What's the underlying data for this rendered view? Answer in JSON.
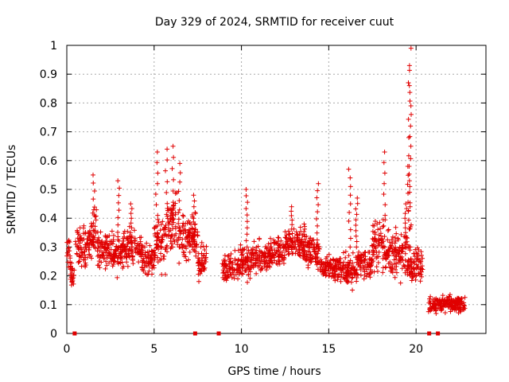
{
  "chart_data": {
    "type": "scatter",
    "title": "Day 329 of 2024, SRMTID for receiver cuut",
    "xlabel": "GPS time / hours",
    "ylabel": "SRMTID / TECUs",
    "xlim": [
      0,
      24
    ],
    "ylim": [
      0,
      1
    ],
    "x_ticks": [
      0,
      5,
      10,
      15,
      20
    ],
    "x_tick_labels": [
      "0",
      "5",
      "10",
      "15",
      "20"
    ],
    "y_ticks": [
      0,
      0.1,
      0.2,
      0.3,
      0.4,
      0.5,
      0.6,
      0.7,
      0.8,
      0.9,
      1
    ],
    "y_tick_labels": [
      "0",
      "0.1",
      "0.2",
      "0.3",
      "0.4",
      "0.5",
      "0.6",
      "0.7",
      "0.8",
      "0.9",
      "1"
    ],
    "grid": true,
    "marker": "+",
    "color": "#e00000",
    "segments": [
      {
        "start": 0.0,
        "end": 0.2,
        "base": 0.28,
        "spread": 0.1
      },
      {
        "start": 0.2,
        "end": 0.45,
        "base": 0.2,
        "spread": 0.07
      },
      {
        "start": 0.45,
        "end": 1.3,
        "base": 0.3,
        "spread": 0.1
      },
      {
        "start": 1.3,
        "end": 1.7,
        "base": 0.36,
        "spread": 0.12
      },
      {
        "start": 1.7,
        "end": 2.4,
        "base": 0.3,
        "spread": 0.09
      },
      {
        "start": 2.4,
        "end": 3.1,
        "base": 0.28,
        "spread": 0.1
      },
      {
        "start": 3.1,
        "end": 4.3,
        "base": 0.29,
        "spread": 0.09
      },
      {
        "start": 4.3,
        "end": 5.0,
        "base": 0.26,
        "spread": 0.08
      },
      {
        "start": 5.0,
        "end": 5.7,
        "base": 0.32,
        "spread": 0.14
      },
      {
        "start": 5.7,
        "end": 6.3,
        "base": 0.38,
        "spread": 0.14
      },
      {
        "start": 6.3,
        "end": 7.5,
        "base": 0.33,
        "spread": 0.12
      },
      {
        "start": 7.5,
        "end": 8.0,
        "base": 0.25,
        "spread": 0.08
      },
      {
        "start": 8.9,
        "end": 9.6,
        "base": 0.23,
        "spread": 0.07
      },
      {
        "start": 9.6,
        "end": 10.5,
        "base": 0.24,
        "spread": 0.09
      },
      {
        "start": 10.5,
        "end": 11.5,
        "base": 0.26,
        "spread": 0.08
      },
      {
        "start": 11.5,
        "end": 12.5,
        "base": 0.28,
        "spread": 0.07
      },
      {
        "start": 12.5,
        "end": 13.5,
        "base": 0.32,
        "spread": 0.08
      },
      {
        "start": 13.5,
        "end": 14.5,
        "base": 0.28,
        "spread": 0.08
      },
      {
        "start": 14.5,
        "end": 15.5,
        "base": 0.23,
        "spread": 0.06
      },
      {
        "start": 15.5,
        "end": 16.5,
        "base": 0.22,
        "spread": 0.08
      },
      {
        "start": 16.5,
        "end": 17.5,
        "base": 0.24,
        "spread": 0.08
      },
      {
        "start": 17.5,
        "end": 18.5,
        "base": 0.3,
        "spread": 0.12
      },
      {
        "start": 18.5,
        "end": 19.5,
        "base": 0.28,
        "spread": 0.12
      },
      {
        "start": 19.5,
        "end": 20.4,
        "base": 0.24,
        "spread": 0.08
      },
      {
        "start": 20.7,
        "end": 21.5,
        "base": 0.1,
        "spread": 0.04
      },
      {
        "start": 21.5,
        "end": 22.8,
        "base": 0.1,
        "spread": 0.04
      }
    ],
    "spikes": [
      {
        "x": 1.55,
        "y": 0.55
      },
      {
        "x": 2.95,
        "y": 0.53
      },
      {
        "x": 3.7,
        "y": 0.45
      },
      {
        "x": 5.15,
        "y": 0.63
      },
      {
        "x": 5.7,
        "y": 0.64
      },
      {
        "x": 6.05,
        "y": 0.65
      },
      {
        "x": 6.45,
        "y": 0.59
      },
      {
        "x": 7.3,
        "y": 0.48
      },
      {
        "x": 10.3,
        "y": 0.5
      },
      {
        "x": 12.9,
        "y": 0.44
      },
      {
        "x": 13.6,
        "y": 0.38
      },
      {
        "x": 14.35,
        "y": 0.52
      },
      {
        "x": 16.2,
        "y": 0.57
      },
      {
        "x": 16.6,
        "y": 0.47
      },
      {
        "x": 18.2,
        "y": 0.63
      },
      {
        "x": 19.4,
        "y": 0.45
      },
      {
        "x": 19.55,
        "y": 0.58
      },
      {
        "x": 19.62,
        "y": 0.87
      },
      {
        "x": 19.65,
        "y": 0.93
      },
      {
        "x": 19.68,
        "y": 0.99
      }
    ],
    "zero_markers": [
      0.45,
      7.35,
      8.7,
      20.75,
      21.25
    ]
  }
}
